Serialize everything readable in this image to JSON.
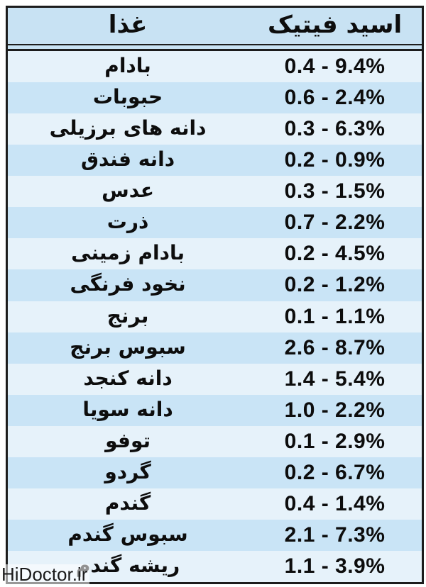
{
  "chart_data": {
    "type": "table",
    "title": "",
    "columns": [
      "غذا",
      "اسید فیتیک"
    ],
    "rows": [
      [
        "بادام",
        "0.4 - 9.4%"
      ],
      [
        "حبوبات",
        "0.6 - 2.4%"
      ],
      [
        "دانه های برزیلی",
        "0.3 - 6.3%"
      ],
      [
        "دانه فندق",
        "0.2 - 0.9%"
      ],
      [
        "عدس",
        "0.3 - 1.5%"
      ],
      [
        "ذرت",
        "0.7 - 2.2%"
      ],
      [
        "بادام زمینی",
        "0.2 - 4.5%"
      ],
      [
        "نخود فرنگی",
        "0.2 - 1.2%"
      ],
      [
        "برنج",
        "0.1 - 1.1%"
      ],
      [
        "سبوس برنج",
        "2.6 - 8.7%"
      ],
      [
        "دانه کنجد",
        "1.4 - 5.4%"
      ],
      [
        "دانه سویا",
        "1.0 - 2.2%"
      ],
      [
        "توفو",
        "0.1 - 2.9%"
      ],
      [
        "گردو",
        "0.2 - 6.7%"
      ],
      [
        "گندم",
        "0.4 - 1.4%"
      ],
      [
        "سبوس گندم",
        "2.1 - 7.3%"
      ],
      [
        "ریشه گندم",
        "1.1 - 3.9%"
      ]
    ],
    "layout": {
      "direction": "rtl",
      "striped": true,
      "stripe_pattern": "odd-rows-light, even-rows-blue"
    }
  },
  "watermark": "HiDoctor.ir",
  "colors": {
    "header_bg": "#c8e2f3",
    "row_light": "#e6f2fa",
    "row_dark": "#c9e4f6",
    "border": "#1c1c1c"
  }
}
